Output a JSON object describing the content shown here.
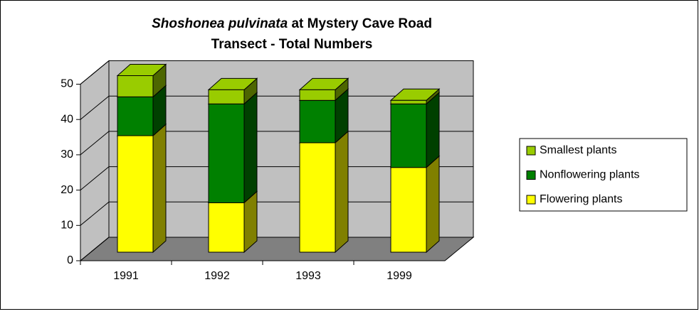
{
  "chart_data": {
    "type": "bar3d_stacked",
    "title_species": "Shoshonea pulvinata",
    "title_rest": "at Mystery Cave Road",
    "title_line2": "Transect - Total Numbers",
    "categories": [
      "1991",
      "1992",
      "1993",
      "1999"
    ],
    "series": [
      {
        "name": "Flowering plants",
        "color": "#ffff00",
        "side_color": "#808000",
        "values": [
          33,
          14,
          31,
          24
        ]
      },
      {
        "name": "Nonflowering plants",
        "color": "#008000",
        "side_color": "#004000",
        "values": [
          11,
          28,
          12,
          18
        ]
      },
      {
        "name": "Smallest plants",
        "color": "#99cc00",
        "side_color": "#4d6600",
        "values": [
          6,
          4,
          3,
          1
        ]
      }
    ],
    "ylim": [
      0,
      50
    ],
    "yticks": [
      0,
      10,
      20,
      30,
      40,
      50
    ],
    "grid": true,
    "legend": "right"
  }
}
